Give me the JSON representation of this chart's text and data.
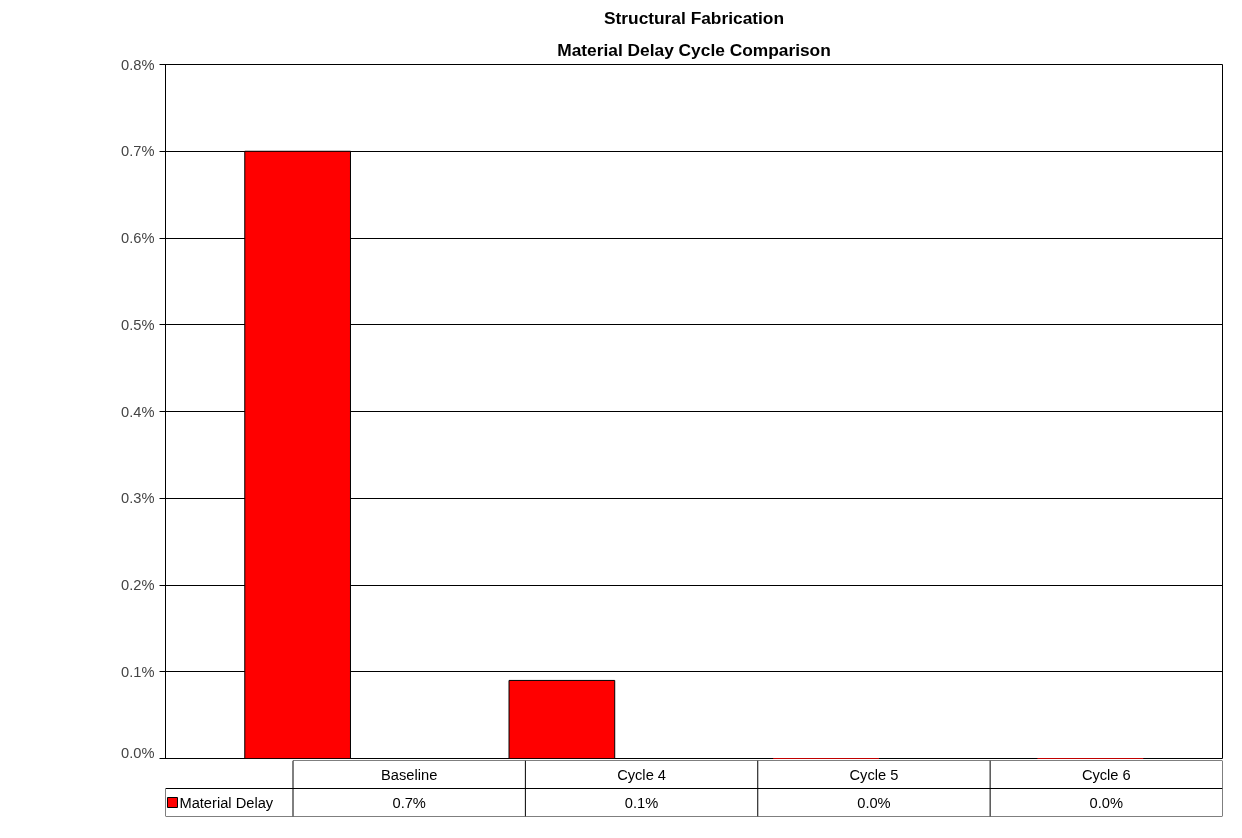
{
  "chart_data": {
    "type": "bar",
    "title": "Structural Fabrication",
    "subtitle": "Material Delay Cycle Comparison",
    "categories": [
      "Baseline",
      "Cycle 4",
      "Cycle 5",
      "Cycle 6"
    ],
    "series": [
      {
        "name": "Material Delay",
        "color": "#ff0000",
        "values": [
          0.7,
          0.09,
          0,
          0
        ],
        "value_labels": [
          "0.7%",
          "0.1%",
          "0.0%",
          "0.0%"
        ]
      }
    ],
    "ylim": [
      0,
      0.8
    ],
    "yticks": [
      {
        "value": 0,
        "label": "0.0%"
      },
      {
        "value": 0.1,
        "label": "0.1%"
      },
      {
        "value": 0.2,
        "label": "0.2%"
      },
      {
        "value": 0.3,
        "label": "0.3%"
      },
      {
        "value": 0.4,
        "label": "0.4%"
      },
      {
        "value": 0.5,
        "label": "0.5%"
      },
      {
        "value": 0.6,
        "label": "0.6%"
      },
      {
        "value": 0.7,
        "label": "0.7%"
      },
      {
        "value": 0.8,
        "label": "0.8%"
      }
    ],
    "grid": "y",
    "legend": "bottom"
  }
}
